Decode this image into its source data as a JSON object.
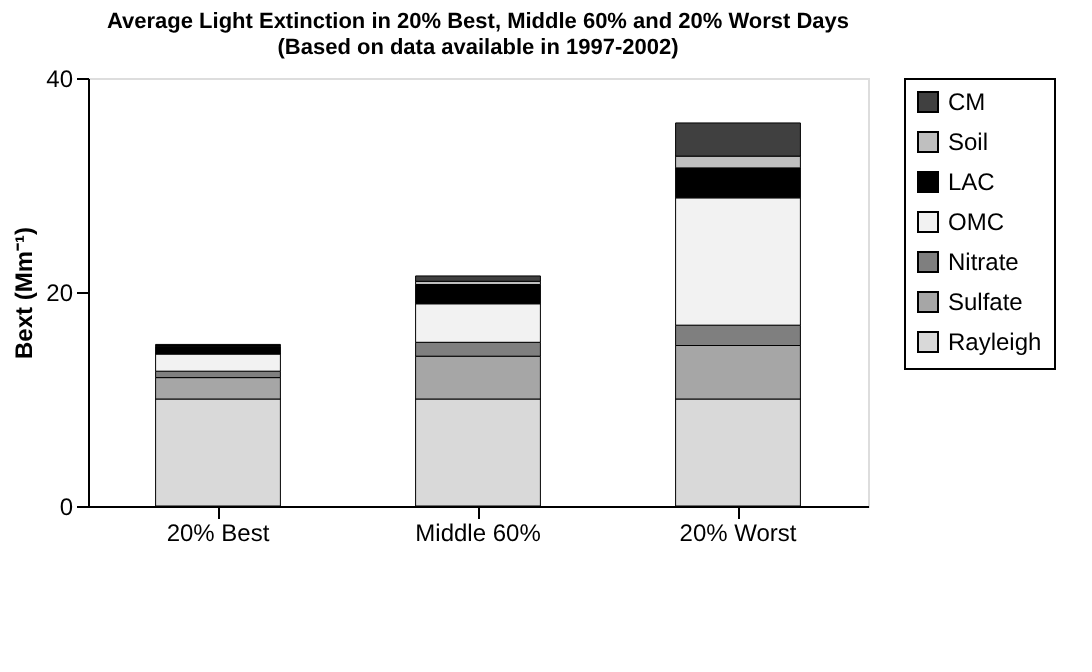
{
  "chart_data": {
    "type": "bar",
    "stacked": true,
    "title": [
      "Average Light Extinction in 20% Best, Middle 60% and 20% Worst Days",
      "(Based on data available in 1997-2002)"
    ],
    "ylabel": "Bext (Mm⁻¹)",
    "categories": [
      "20% Best",
      "Middle 60%",
      "20% Worst"
    ],
    "series": [
      {
        "name": "Rayleigh",
        "color": "#d9d9d9",
        "values": [
          10,
          10,
          10
        ]
      },
      {
        "name": "Sulfate",
        "color": "#a6a6a6",
        "values": [
          2.0,
          4.0,
          5.0
        ]
      },
      {
        "name": "Nitrate",
        "color": "#7f7f7f",
        "values": [
          0.6,
          1.3,
          1.9
        ]
      },
      {
        "name": "OMC",
        "color": "#f2f2f2",
        "values": [
          1.6,
          3.6,
          11.9
        ]
      },
      {
        "name": "LAC",
        "color": "#000000",
        "values": [
          0.7,
          1.8,
          2.8
        ]
      },
      {
        "name": "Soil",
        "color": "#bfbfbf",
        "values": [
          0.1,
          0.3,
          1.1
        ]
      },
      {
        "name": "CM",
        "color": "#404040",
        "values": [
          0.1,
          0.5,
          3.1
        ]
      }
    ],
    "ylim": [
      0,
      40
    ],
    "yticks": [
      0,
      20,
      40
    ],
    "grid": false,
    "legend": "right"
  }
}
